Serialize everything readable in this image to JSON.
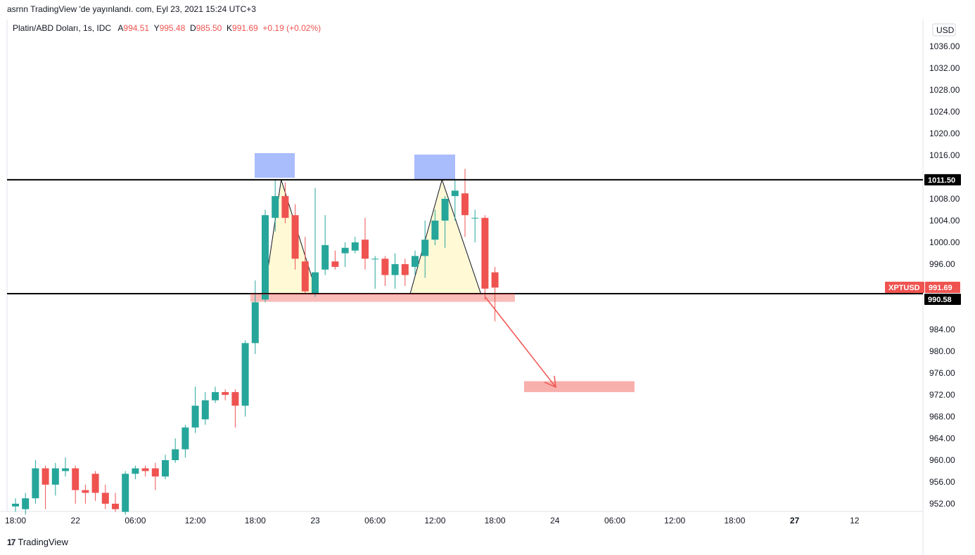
{
  "header": {
    "text": "asrnn TradingView 'de yayınlandı. com, Eyl 23, 2021 15:24 UTC+3"
  },
  "symbol": {
    "name": "Platin/ABD Doları, 1s, IDC",
    "open_label": "A",
    "open": "994.51",
    "high_label": "Y",
    "high": "995.48",
    "low_label": "D",
    "low": "985.50",
    "close_label": "K",
    "close": "991.69",
    "change": "+0.19 (+0.02%)"
  },
  "currency": "USD",
  "footer": {
    "brand": "TradingView",
    "logo": "17"
  },
  "colors": {
    "up": "#26a69a",
    "down": "#ef5350",
    "zone_blue": "#a9bcfc",
    "zone_red": "#f8b0ad",
    "triangle": "#fff9d6"
  },
  "chart_data": {
    "type": "candlestick",
    "ylim": [
      950.0,
      1040.0
    ],
    "y_ticks": [
      "1036.00",
      "1032.00",
      "1028.00",
      "1024.00",
      "1020.00",
      "1016.00",
      "1008.00",
      "1004.00",
      "1000.00",
      "996.00",
      "984.00",
      "980.00",
      "976.00",
      "972.00",
      "968.00",
      "964.00",
      "960.00",
      "956.00",
      "952.00"
    ],
    "x_ticks": [
      {
        "i": 0,
        "label": "18:00"
      },
      {
        "i": 6,
        "label": "22"
      },
      {
        "i": 12,
        "label": "06:00"
      },
      {
        "i": 18,
        "label": "12:00"
      },
      {
        "i": 24,
        "label": "18:00"
      },
      {
        "i": 30,
        "label": "23"
      },
      {
        "i": 36,
        "label": "06:00"
      },
      {
        "i": 42,
        "label": "12:00"
      },
      {
        "i": 48,
        "label": "18:00"
      },
      {
        "i": 54,
        "label": "24"
      },
      {
        "i": 60,
        "label": "06:00"
      },
      {
        "i": 66,
        "label": "12:00"
      },
      {
        "i": 72,
        "label": "18:00"
      },
      {
        "i": 78,
        "label": "27"
      },
      {
        "i": 84,
        "label": "12"
      }
    ],
    "candles": [
      {
        "o": 951.5,
        "h": 953.0,
        "l": 950.5,
        "c": 952.0
      },
      {
        "o": 951.0,
        "h": 954.0,
        "l": 950.0,
        "c": 953.0
      },
      {
        "o": 953.0,
        "h": 960.0,
        "l": 952.0,
        "c": 958.5
      },
      {
        "o": 958.5,
        "h": 959.0,
        "l": 951.0,
        "c": 955.5
      },
      {
        "o": 955.5,
        "h": 959.5,
        "l": 953.5,
        "c": 958.5
      },
      {
        "o": 958.0,
        "h": 960.5,
        "l": 957.0,
        "c": 958.5
      },
      {
        "o": 958.5,
        "h": 959.0,
        "l": 952.0,
        "c": 954.5
      },
      {
        "o": 954.5,
        "h": 955.5,
        "l": 952.0,
        "c": 954.0
      },
      {
        "o": 957.5,
        "h": 958.0,
        "l": 952.5,
        "c": 954.0
      },
      {
        "o": 954.0,
        "h": 955.5,
        "l": 951.0,
        "c": 952.0
      },
      {
        "o": 952.0,
        "h": 954.0,
        "l": 950.5,
        "c": 951.0
      },
      {
        "o": 950.5,
        "h": 958.0,
        "l": 950.0,
        "c": 957.5
      },
      {
        "o": 957.5,
        "h": 959.0,
        "l": 956.5,
        "c": 958.5
      },
      {
        "o": 958.5,
        "h": 959.0,
        "l": 957.0,
        "c": 958.0
      },
      {
        "o": 958.5,
        "h": 959.5,
        "l": 954.5,
        "c": 957.0
      },
      {
        "o": 957.0,
        "h": 961.0,
        "l": 956.5,
        "c": 960.0
      },
      {
        "o": 960.0,
        "h": 964.0,
        "l": 959.5,
        "c": 962.0
      },
      {
        "o": 962.0,
        "h": 966.5,
        "l": 960.5,
        "c": 966.0
      },
      {
        "o": 966.0,
        "h": 973.5,
        "l": 965.0,
        "c": 970.0
      },
      {
        "o": 967.5,
        "h": 972.5,
        "l": 966.5,
        "c": 971.0
      },
      {
        "o": 971.0,
        "h": 973.5,
        "l": 970.5,
        "c": 972.5
      },
      {
        "o": 972.5,
        "h": 973.0,
        "l": 971.0,
        "c": 972.0
      },
      {
        "o": 972.5,
        "h": 973.0,
        "l": 966.0,
        "c": 970.0
      },
      {
        "o": 970.0,
        "h": 982.0,
        "l": 968.0,
        "c": 981.5
      },
      {
        "o": 981.5,
        "h": 993.0,
        "l": 979.5,
        "c": 989.0
      },
      {
        "o": 989.5,
        "h": 1006.0,
        "l": 989.0,
        "c": 1005.0
      },
      {
        "o": 1004.5,
        "h": 1011.5,
        "l": 1002.0,
        "c": 1008.5
      },
      {
        "o": 1008.5,
        "h": 1011.0,
        "l": 1003.5,
        "c": 1004.5
      },
      {
        "o": 1005.0,
        "h": 1007.0,
        "l": 995.0,
        "c": 997.0
      },
      {
        "o": 996.5,
        "h": 1001.0,
        "l": 990.5,
        "c": 991.0
      },
      {
        "o": 990.5,
        "h": 1010.0,
        "l": 990.0,
        "c": 994.5
      },
      {
        "o": 995.0,
        "h": 1005.0,
        "l": 994.0,
        "c": 999.5
      },
      {
        "o": 996.5,
        "h": 998.5,
        "l": 995.0,
        "c": 995.5
      },
      {
        "o": 998.0,
        "h": 1000.0,
        "l": 995.5,
        "c": 999.0
      },
      {
        "o": 998.5,
        "h": 1001.0,
        "l": 998.0,
        "c": 1000.0
      },
      {
        "o": 1000.5,
        "h": 1004.5,
        "l": 995.0,
        "c": 997.0
      },
      {
        "o": 997.0,
        "h": 997.5,
        "l": 991.5,
        "c": 997.0
      },
      {
        "o": 997.0,
        "h": 997.5,
        "l": 992.0,
        "c": 994.0
      },
      {
        "o": 994.0,
        "h": 998.0,
        "l": 991.5,
        "c": 996.0
      },
      {
        "o": 996.0,
        "h": 997.0,
        "l": 992.0,
        "c": 994.0
      },
      {
        "o": 995.5,
        "h": 998.5,
        "l": 994.0,
        "c": 997.5
      },
      {
        "o": 997.5,
        "h": 1004.0,
        "l": 993.5,
        "c": 1000.5
      },
      {
        "o": 1000.5,
        "h": 1006.0,
        "l": 999.5,
        "c": 1004.0
      },
      {
        "o": 1004.0,
        "h": 1008.5,
        "l": 999.0,
        "c": 1008.0
      },
      {
        "o": 1008.5,
        "h": 1011.5,
        "l": 1004.0,
        "c": 1009.5
      },
      {
        "o": 1009.0,
        "h": 1013.5,
        "l": 1001.0,
        "c": 1005.0
      },
      {
        "o": 1004.5,
        "h": 1006.0,
        "l": 1000.0,
        "c": 1004.5
      },
      {
        "o": 1004.5,
        "h": 1005.0,
        "l": 989.5,
        "c": 991.5
      },
      {
        "o": 994.5,
        "h": 995.5,
        "l": 985.5,
        "c": 991.7
      }
    ]
  },
  "annotations": {
    "resistance": "1011.50",
    "support": "990.58",
    "symbol_tag": "XPTUSD",
    "last_price": "991.69",
    "target_zone": [
      972.5,
      974.5
    ]
  }
}
